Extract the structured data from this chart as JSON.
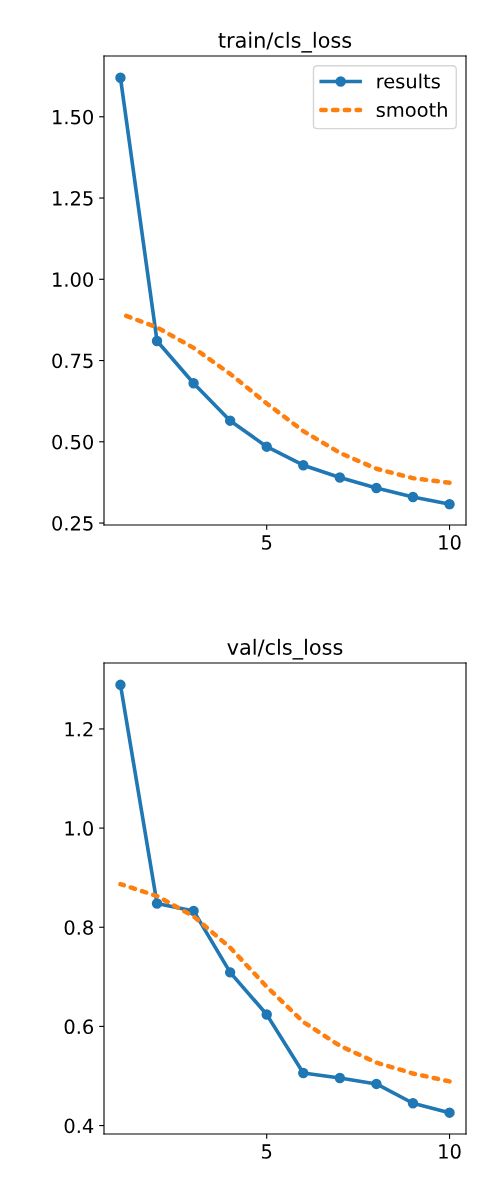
{
  "chart_data": [
    {
      "type": "line",
      "title": "train/cls_loss",
      "x": [
        1,
        2,
        3,
        4,
        5,
        6,
        7,
        8,
        9,
        10
      ],
      "series": [
        {
          "name": "results",
          "color": "#1f77b4",
          "marker": "circle",
          "line_style": "solid",
          "values": [
            1.62,
            0.81,
            0.68,
            0.565,
            0.485,
            0.428,
            0.39,
            0.358,
            0.33,
            0.308
          ]
        },
        {
          "name": "smooth",
          "color": "#ff7f0e",
          "marker": "none",
          "line_style": "dotted",
          "values": [
            0.894,
            0.852,
            0.789,
            0.709,
            0.618,
            0.533,
            0.466,
            0.417,
            0.388,
            0.374
          ]
        }
      ],
      "xlim": [
        0.55,
        10.45
      ],
      "xticks": [
        5,
        10
      ],
      "ylim": [
        0.244,
        1.687
      ],
      "yticks": [
        {
          "value": 0.25,
          "label": "0.25"
        },
        {
          "value": 0.5,
          "label": "0.50"
        },
        {
          "value": 0.75,
          "label": "0.75"
        },
        {
          "value": 1.0,
          "label": "1.00"
        },
        {
          "value": 1.25,
          "label": "1.25"
        },
        {
          "value": 1.5,
          "label": "1.50"
        }
      ],
      "grid": false,
      "legend": "top right"
    },
    {
      "type": "line",
      "title": "val/cls_loss",
      "x": [
        1,
        2,
        3,
        4,
        5,
        6,
        7,
        8,
        9,
        10
      ],
      "series": [
        {
          "color": "#1f77b4",
          "marker": "circle",
          "line_style": "solid",
          "values": [
            1.289,
            0.848,
            0.833,
            0.709,
            0.624,
            0.506,
            0.496,
            0.484,
            0.445,
            0.426
          ]
        },
        {
          "color": "#ff7f0e",
          "marker": "none",
          "line_style": "dotted",
          "values": [
            0.887,
            0.863,
            0.822,
            0.759,
            0.68,
            0.609,
            0.561,
            0.527,
            0.505,
            0.489
          ]
        }
      ],
      "xlim": [
        0.55,
        10.45
      ],
      "xticks": [
        5,
        10
      ],
      "ylim": [
        0.383,
        1.333
      ],
      "yticks": [
        {
          "value": 0.4,
          "label": "0.4"
        },
        {
          "value": 0.6,
          "label": "0.6"
        },
        {
          "value": 0.8,
          "label": "0.8"
        },
        {
          "value": 1.0,
          "label": "1.0"
        },
        {
          "value": 1.2,
          "label": "1.2"
        }
      ],
      "grid": false,
      "legend": false
    }
  ]
}
